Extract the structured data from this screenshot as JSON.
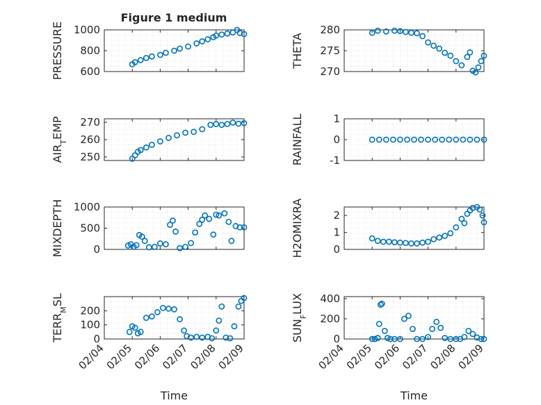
{
  "figure": {
    "title": "Figure 1 medium"
  },
  "colors": {
    "marker": "#0072BD",
    "axis": "#262626",
    "grid": "#c8c8c8",
    "grid_minor": "#dcdcdc"
  },
  "chart_data": [
    {
      "type": "scatter",
      "ylabel": "PRESSURE",
      "xlabel": "",
      "xlim": [
        "02/04",
        "02/09"
      ],
      "ylim": [
        600,
        1000
      ],
      "yticks": [
        "600",
        "800",
        "1000"
      ],
      "xticks": [],
      "grid": true,
      "x": [
        1.0,
        1.1,
        1.3,
        1.5,
        1.7,
        2.0,
        2.2,
        2.5,
        2.7,
        3.0,
        3.3,
        3.5,
        3.7,
        3.9,
        4.0,
        4.2,
        4.4,
        4.6,
        4.75,
        4.85,
        5.0
      ],
      "y": [
        670,
        690,
        710,
        730,
        745,
        760,
        780,
        800,
        820,
        840,
        870,
        890,
        910,
        930,
        945,
        955,
        965,
        975,
        1000,
        970,
        960
      ]
    },
    {
      "type": "scatter",
      "ylabel": "THETA",
      "xlabel": "",
      "xlim": [
        "02/04",
        "02/09"
      ],
      "ylim": [
        270,
        280
      ],
      "yticks": [
        "270",
        "275",
        "280"
      ],
      "xticks": [],
      "grid": true,
      "x": [
        1.0,
        1.2,
        1.5,
        1.8,
        2.0,
        2.2,
        2.4,
        2.6,
        2.8,
        3.0,
        3.2,
        3.4,
        3.6,
        3.8,
        4.0,
        4.2,
        4.4,
        4.5,
        4.6,
        4.7,
        4.8,
        4.9,
        5.0
      ],
      "y": [
        279.3,
        279.8,
        279.6,
        279.8,
        279.7,
        279.5,
        279.3,
        279.2,
        278.5,
        277.0,
        276.2,
        275.5,
        274.5,
        273.8,
        272.5,
        271.5,
        273.5,
        274.6,
        270.2,
        269.8,
        271.0,
        272.5,
        273.8
      ]
    },
    {
      "type": "scatter",
      "ylabel": "AIR_TEMP",
      "xlabel": "",
      "xlim": [
        "02/04",
        "02/09"
      ],
      "ylim": [
        248,
        272
      ],
      "yticks": [
        "250",
        "260",
        "270"
      ],
      "xticks": [],
      "grid": true,
      "x": [
        1.0,
        1.1,
        1.2,
        1.3,
        1.5,
        1.7,
        2.0,
        2.3,
        2.6,
        2.9,
        3.2,
        3.5,
        3.8,
        4.0,
        4.2,
        4.4,
        4.6,
        4.8,
        5.0
      ],
      "y": [
        249,
        251,
        253,
        254,
        255.5,
        257,
        259,
        261,
        262.5,
        264,
        264.5,
        266,
        268.5,
        269,
        268.5,
        269,
        269.8,
        269.2,
        269.5
      ]
    },
    {
      "type": "scatter",
      "ylabel": "RAINFALL",
      "xlabel": "",
      "xlim": [
        "02/04",
        "02/09"
      ],
      "ylim": [
        -1,
        1
      ],
      "yticks": [
        "-1",
        "0",
        "1"
      ],
      "xticks": [],
      "grid": true,
      "x": [
        1.0,
        1.25,
        1.5,
        1.75,
        2.0,
        2.25,
        2.5,
        2.75,
        3.0,
        3.25,
        3.5,
        3.75,
        4.0,
        4.25,
        4.5,
        4.75,
        5.0
      ],
      "y": [
        0,
        0,
        0,
        0,
        0,
        0,
        0,
        0,
        0,
        0,
        0,
        0,
        0,
        0,
        0,
        0,
        0
      ]
    },
    {
      "type": "scatter",
      "ylabel": "MIXDEPTH",
      "xlabel": "",
      "xlim": [
        "02/04",
        "02/09"
      ],
      "ylim": [
        0,
        1000
      ],
      "yticks": [
        "0",
        "500",
        "1000"
      ],
      "xticks": [],
      "grid": true,
      "x": [
        0.85,
        0.95,
        1.05,
        1.15,
        1.25,
        1.35,
        1.45,
        1.6,
        1.8,
        2.0,
        2.2,
        2.35,
        2.45,
        2.55,
        2.7,
        2.9,
        3.1,
        3.25,
        3.4,
        3.5,
        3.6,
        3.75,
        3.9,
        4.0,
        4.1,
        4.3,
        4.45,
        4.55,
        4.7,
        4.85,
        5.0
      ],
      "y": [
        90,
        120,
        60,
        100,
        340,
        300,
        200,
        50,
        60,
        140,
        120,
        580,
        680,
        420,
        30,
        60,
        150,
        400,
        600,
        700,
        800,
        720,
        350,
        820,
        800,
        850,
        650,
        200,
        550,
        520,
        520
      ]
    },
    {
      "type": "scatter",
      "ylabel": "H2OMIXRA",
      "xlabel": "",
      "xlim": [
        "02/04",
        "02/09"
      ],
      "ylim": [
        0,
        2.5
      ],
      "yticks": [
        "0",
        "1",
        "2"
      ],
      "xticks": [],
      "grid": true,
      "x": [
        1.0,
        1.2,
        1.4,
        1.6,
        1.8,
        2.0,
        2.2,
        2.4,
        2.6,
        2.8,
        3.0,
        3.2,
        3.4,
        3.6,
        3.8,
        4.0,
        4.2,
        4.3,
        4.4,
        4.5,
        4.6,
        4.75,
        4.85,
        4.95,
        5.0
      ],
      "y": [
        0.65,
        0.5,
        0.45,
        0.45,
        0.42,
        0.4,
        0.38,
        0.35,
        0.35,
        0.4,
        0.45,
        0.6,
        0.7,
        0.8,
        0.95,
        1.3,
        1.8,
        1.55,
        2.1,
        2.3,
        2.45,
        2.5,
        2.35,
        2.0,
        1.6
      ]
    },
    {
      "type": "scatter",
      "ylabel": "TERR_MSL",
      "xlabel": "Time",
      "xlim": [
        "02/04",
        "02/09"
      ],
      "ylim": [
        0,
        300
      ],
      "yticks": [
        "0",
        "100",
        "200"
      ],
      "xticks": [
        "02/04",
        "02/05",
        "02/06",
        "02/07",
        "02/08",
        "02/09"
      ],
      "grid": true,
      "x": [
        0.9,
        1.0,
        1.1,
        1.2,
        1.3,
        1.5,
        1.7,
        1.9,
        2.1,
        2.3,
        2.5,
        2.7,
        2.85,
        2.95,
        3.1,
        3.3,
        3.5,
        3.7,
        3.85,
        4.0,
        4.1,
        4.2,
        4.35,
        4.5,
        4.65,
        4.8,
        4.9,
        5.0
      ],
      "y": [
        50,
        90,
        80,
        40,
        50,
        150,
        160,
        190,
        220,
        215,
        210,
        140,
        60,
        20,
        10,
        15,
        10,
        15,
        5,
        60,
        130,
        230,
        10,
        5,
        90,
        230,
        270,
        290
      ]
    },
    {
      "type": "scatter",
      "ylabel": "SUN_FLUX",
      "xlabel": "Time",
      "xlim": [
        "02/04",
        "02/09"
      ],
      "ylim": [
        0,
        420
      ],
      "yticks": [
        "0",
        "200",
        "400"
      ],
      "xticks": [
        "02/04",
        "02/05",
        "02/06",
        "02/07",
        "02/08",
        "02/09"
      ],
      "grid": true,
      "x": [
        1.0,
        1.1,
        1.2,
        1.25,
        1.3,
        1.35,
        1.45,
        1.55,
        1.65,
        1.8,
        2.0,
        2.15,
        2.3,
        2.45,
        2.6,
        2.8,
        3.0,
        3.15,
        3.3,
        3.45,
        3.6,
        3.8,
        4.0,
        4.15,
        4.3,
        4.45,
        4.6,
        4.75,
        4.9,
        5.0
      ],
      "y": [
        0,
        0,
        10,
        150,
        340,
        350,
        80,
        10,
        0,
        0,
        0,
        200,
        230,
        100,
        0,
        0,
        20,
        100,
        170,
        110,
        10,
        0,
        0,
        0,
        20,
        80,
        50,
        15,
        0,
        0
      ]
    }
  ]
}
